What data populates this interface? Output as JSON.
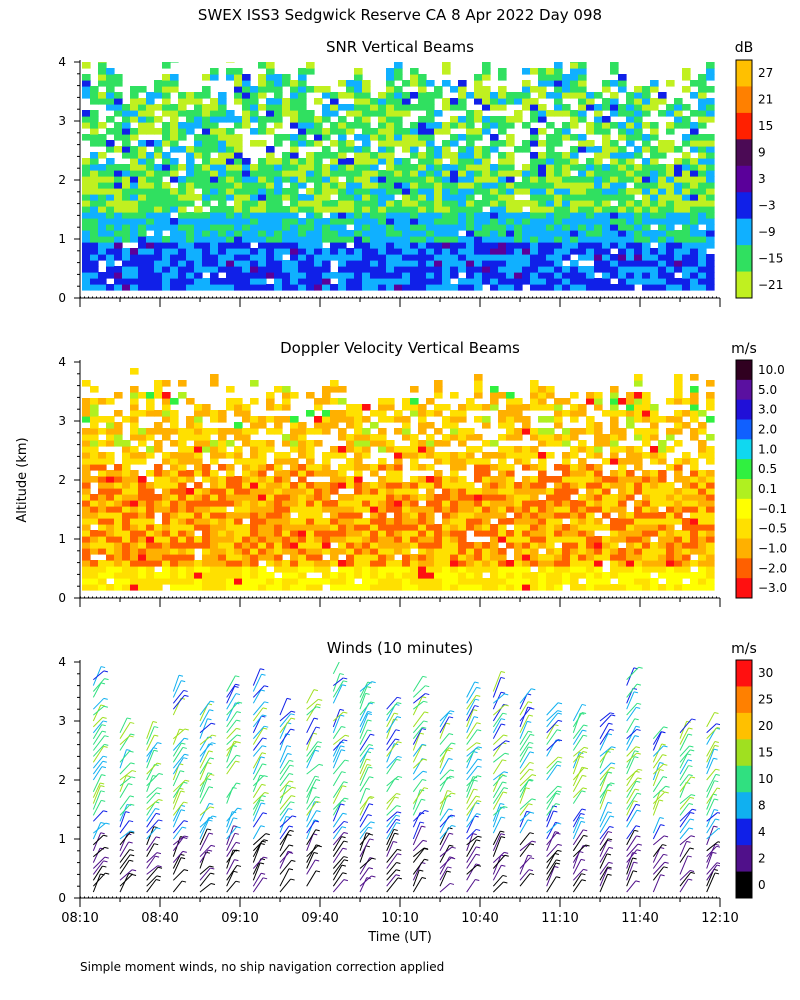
{
  "title": "SWEX ISS3 Sedgwick Reserve CA   8 Apr 2022 Day 098",
  "footnote": "Simple moment winds, no ship navigation correction applied",
  "ylabel": "Altitude (km)",
  "xlabel": "Time (UT)",
  "chart_data": [
    {
      "type": "heatmap",
      "title": "SNR Vertical Beams",
      "units": "dB",
      "xlim": [
        0,
        240
      ],
      "ylim": [
        0,
        4
      ],
      "yticks": [
        0,
        1,
        2,
        3,
        4
      ],
      "top_km": 3.9,
      "colorbar": {
        "labels": [
          "27",
          "21",
          "15",
          "9",
          "3",
          "−3",
          "−9",
          "−15",
          "−21"
        ],
        "colors": [
          "#ffc000",
          "#ff8000",
          "#ff2000",
          "#4b0a55",
          "#5a009a",
          "#1020e8",
          "#10b0ff",
          "#30e060",
          "#c0f020"
        ]
      }
    },
    {
      "type": "heatmap",
      "title": "Doppler Velocity Vertical Beams",
      "units": "m/s",
      "xlim": [
        0,
        240
      ],
      "ylim": [
        0,
        4
      ],
      "yticks": [
        0,
        1,
        2,
        3,
        4
      ],
      "top_km": 3.7,
      "colorbar": {
        "labels": [
          "10.0",
          "5.0",
          "3.0",
          "2.0",
          "1.0",
          "0.5",
          "0.1",
          "−0.1",
          "−0.5",
          "−1.0",
          "−2.0",
          "−3.0"
        ],
        "colors": [
          "#300020",
          "#5a10a0",
          "#2010d8",
          "#1060ff",
          "#10d8f0",
          "#30f040",
          "#b0f020",
          "#ffff00",
          "#ffe000",
          "#ffb000",
          "#ff6000",
          "#ff1010"
        ]
      }
    },
    {
      "type": "wind_barbs",
      "title": "Winds (10 minutes)",
      "units": "m/s",
      "xlim": [
        0,
        240
      ],
      "ylim": [
        0,
        4
      ],
      "yticks": [
        0,
        1,
        2,
        3,
        4
      ],
      "profile_interval_min": 10,
      "colorbar": {
        "labels": [
          "30",
          "25",
          "20",
          "15",
          "10",
          "8",
          "4",
          "2",
          "0"
        ],
        "colors": [
          "#ff1010",
          "#ff8000",
          "#ffc000",
          "#a0e020",
          "#30e080",
          "#10b0f0",
          "#1020e8",
          "#50108a",
          "#000000"
        ]
      }
    }
  ],
  "xticks": {
    "values": [
      0,
      30,
      60,
      90,
      120,
      150,
      180,
      210,
      240
    ],
    "labels": [
      "08:10",
      "08:40",
      "09:10",
      "09:40",
      "10:10",
      "10:40",
      "11:10",
      "11:40",
      "12:10"
    ]
  }
}
